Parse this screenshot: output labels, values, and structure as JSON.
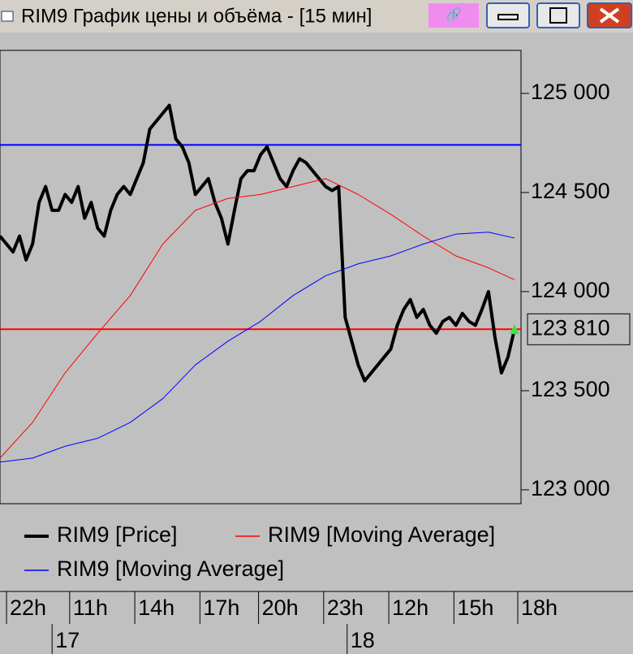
{
  "window": {
    "title": "RIM9 График цены и объёма - [15 мин]"
  },
  "chart_data": {
    "type": "line",
    "x": [
      0,
      1,
      2,
      3,
      4,
      5,
      6,
      7,
      8,
      9,
      10,
      11,
      12,
      13,
      14,
      15,
      16,
      17,
      18,
      19,
      20,
      21,
      22,
      23,
      24,
      25,
      26,
      27,
      28,
      29,
      30,
      31,
      32,
      33,
      34,
      35,
      36,
      37,
      38,
      39,
      40,
      41,
      42,
      43,
      44,
      45,
      46,
      47,
      48,
      49,
      50,
      51,
      52,
      53,
      54,
      55,
      56,
      57,
      58,
      59,
      60,
      61,
      62,
      63,
      64,
      65,
      66,
      67,
      68,
      69,
      70,
      71,
      72,
      73,
      74,
      75,
      76,
      77,
      78,
      79
    ],
    "series": [
      {
        "name": "RIM9 [Price]",
        "color": "#000000",
        "width": 4,
        "values": [
          124280,
          124240,
          124200,
          124280,
          124160,
          124240,
          124450,
          124530,
          124410,
          124410,
          124490,
          124450,
          124530,
          124370,
          124450,
          124320,
          124280,
          124410,
          124490,
          124530,
          124490,
          124570,
          124650,
          124820,
          124860,
          124900,
          124940,
          124770,
          124730,
          124650,
          124490,
          124530,
          124570,
          124450,
          124370,
          124240,
          124410,
          124570,
          124610,
          124610,
          124690,
          124730,
          124650,
          124570,
          124530,
          124610,
          124670,
          124650,
          124610,
          124570,
          124530,
          124510,
          124530,
          123870,
          123750,
          123630,
          123550,
          123590,
          123630,
          123670,
          123710,
          123830,
          123910,
          123960,
          123870,
          123910,
          123830,
          123790,
          123850,
          123870,
          123830,
          123890,
          123850,
          123830,
          123910,
          124000,
          123770,
          123590,
          123670,
          123810
        ]
      },
      {
        "name": "RIM9 [Moving Average]",
        "color": "#ff0000",
        "width": 1,
        "x": [
          0,
          5,
          10,
          15,
          20,
          25,
          30,
          35,
          40,
          45,
          50,
          55,
          60,
          65,
          70,
          75,
          79
        ],
        "values": [
          123160,
          123340,
          123590,
          123790,
          123980,
          124240,
          124410,
          124470,
          124490,
          124530,
          124570,
          124490,
          124390,
          124280,
          124180,
          124120,
          124060
        ]
      },
      {
        "name": "RIM9 [Moving Average]",
        "color": "#0000ff",
        "width": 1,
        "x": [
          0,
          5,
          10,
          15,
          20,
          25,
          30,
          35,
          40,
          45,
          50,
          55,
          60,
          65,
          70,
          75,
          79
        ],
        "values": [
          123140,
          123160,
          123220,
          123260,
          123340,
          123460,
          123630,
          123750,
          123850,
          123980,
          124080,
          124140,
          124180,
          124240,
          124290,
          124300,
          124270
        ]
      }
    ],
    "hlines": [
      {
        "value": 124740,
        "color": "#0000ff"
      },
      {
        "value": 123810,
        "color": "#ff0000",
        "label": "123 810"
      }
    ],
    "xlim": [
      0,
      80
    ],
    "ylim": [
      122930,
      125217
    ],
    "yticks": [
      {
        "value": 123000,
        "label": "123 000"
      },
      {
        "value": 123500,
        "label": "123 500"
      },
      {
        "value": 124000,
        "label": "124 000"
      },
      {
        "value": 124500,
        "label": "124 500"
      },
      {
        "value": 125000,
        "label": "125 000"
      }
    ],
    "xticks": [
      {
        "value": 1,
        "label": "22h"
      },
      {
        "value": 10.7,
        "label": "11h"
      },
      {
        "value": 20.7,
        "label": "14h"
      },
      {
        "value": 30.7,
        "label": "17h"
      },
      {
        "value": 39.7,
        "label": "20h"
      },
      {
        "value": 49.7,
        "label": "23h"
      },
      {
        "value": 59.7,
        "label": "12h"
      },
      {
        "value": 69.7,
        "label": "15h"
      },
      {
        "value": 79.5,
        "label": "18h"
      }
    ],
    "day_ticks": [
      {
        "value": 8,
        "label": "17"
      },
      {
        "value": 53.3,
        "label": "18"
      }
    ]
  }
}
